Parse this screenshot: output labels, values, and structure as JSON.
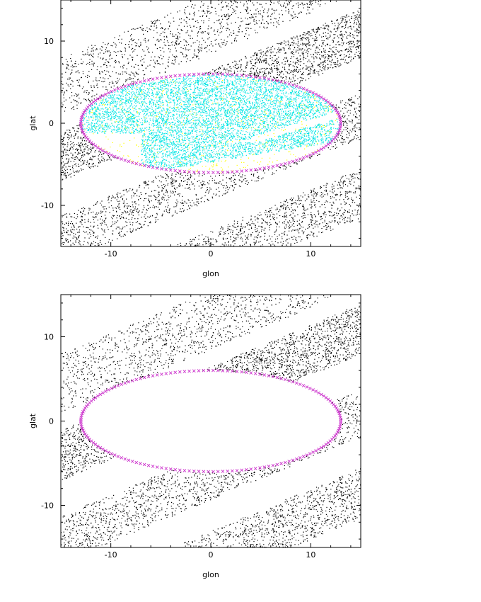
{
  "chart_data": [
    {
      "type": "scatter",
      "title": "",
      "xlabel": "glon",
      "ylabel": "glat",
      "xlim": [
        -15,
        15
      ],
      "ylim": [
        -15,
        15
      ],
      "xticks": [
        -10,
        0,
        10
      ],
      "yticks": [
        -10,
        0,
        10
      ],
      "grid": false,
      "legend": "none",
      "ellipse": {
        "center": [
          0,
          0
        ],
        "semi_axes": [
          13,
          6
        ],
        "color": "#cc33cc",
        "marker": "x"
      },
      "series": [
        {
          "color": "#000000",
          "marker": "dot",
          "bands": [
            {
              "slope": 0.5,
              "offset": 12,
              "half_width": 3.5,
              "count": 1100
            },
            {
              "slope": 0.5,
              "offset": 3.5,
              "half_width": 3.0,
              "count": 1400
            },
            {
              "slope": 0.5,
              "offset": -6.5,
              "half_width": 2.8,
              "count": 1100
            },
            {
              "slope": 0.5,
              "offset": -16,
              "half_width": 3.0,
              "count": 900
            }
          ],
          "excluded_region": "inside-ellipse"
        },
        {
          "color": "#ffff00",
          "marker": "dot",
          "bands": [
            {
              "slope": 0.2,
              "offset": 0.3,
              "half_width": 6.5,
              "count": 600
            }
          ],
          "clip": "inside-ellipse"
        },
        {
          "color": "#00e5e5",
          "marker": "dot",
          "bands": [
            {
              "slope": 0.2,
              "offset": 0.8,
              "half_width": 5.5,
              "count": 6000
            }
          ],
          "clip": "inside-ellipse"
        }
      ]
    },
    {
      "type": "scatter",
      "title": "",
      "xlabel": "glon",
      "ylabel": "glat",
      "xlim": [
        -15,
        15
      ],
      "ylim": [
        -15,
        15
      ],
      "xticks": [
        -10,
        0,
        10
      ],
      "yticks": [
        -10,
        0,
        10
      ],
      "grid": false,
      "legend": "none",
      "ellipse": {
        "center": [
          0,
          0
        ],
        "semi_axes": [
          13,
          6
        ],
        "color": "#cc33cc",
        "marker": "x"
      },
      "series": [
        {
          "color": "#000000",
          "marker": "dot",
          "bands": [
            {
              "slope": 0.5,
              "offset": 12,
              "half_width": 3.5,
              "count": 1100
            },
            {
              "slope": 0.5,
              "offset": 3.5,
              "half_width": 3.0,
              "count": 1400
            },
            {
              "slope": 0.5,
              "offset": -6.5,
              "half_width": 2.8,
              "count": 1100
            },
            {
              "slope": 0.5,
              "offset": -16,
              "half_width": 3.0,
              "count": 900
            }
          ],
          "excluded_region": "inside-ellipse"
        }
      ]
    }
  ]
}
